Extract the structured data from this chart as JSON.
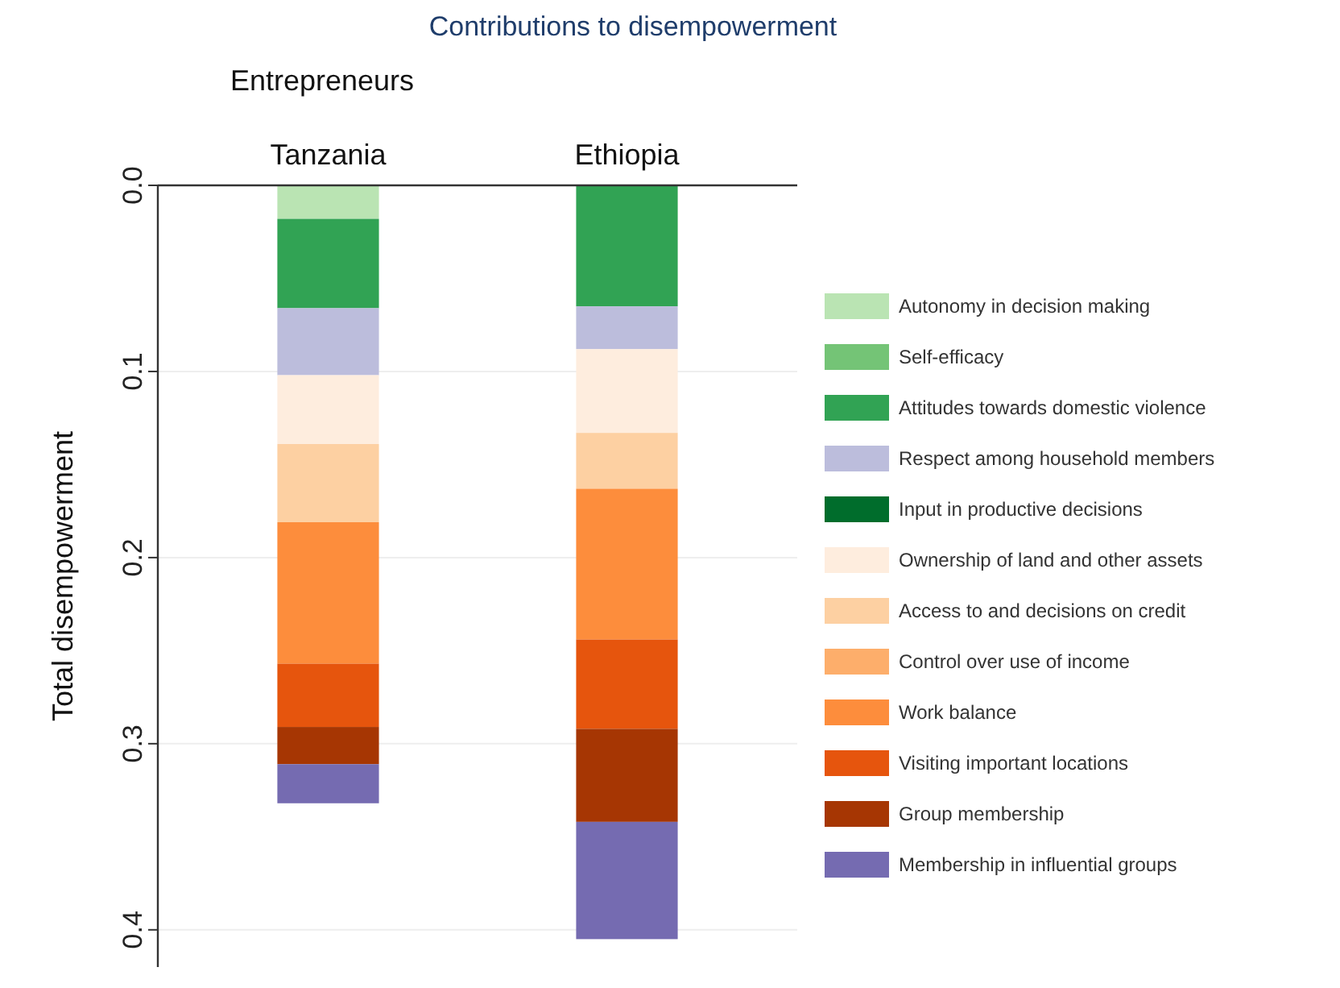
{
  "chart_data": {
    "type": "bar",
    "title": "Contributions to disempowerment",
    "subtitle": "Entrepreneurs",
    "ylabel": "Total disempowerment",
    "categories": [
      "Tanzania",
      "Ethiopia"
    ],
    "stacked": true,
    "ylim": [
      0.42,
      0
    ],
    "yticks": [
      {
        "value": 0,
        "label": "0.0"
      },
      0.1,
      0.2,
      0.3,
      0.4
    ],
    "grid": "y",
    "legend": "right",
    "series": [
      {
        "name": "Autonomy in decision making",
        "color": "#bae4b3",
        "values": [
          0.018,
          0
        ]
      },
      {
        "name": "Self-efficacy",
        "color": "#74c476",
        "values": [
          0,
          0
        ]
      },
      {
        "name": "Attitudes towards domestic violence",
        "color": "#31a354",
        "values": [
          0.048,
          0.065
        ]
      },
      {
        "name": "Respect among household members",
        "color": "#bcbddc",
        "values": [
          0.036,
          0.023
        ]
      },
      {
        "name": "Input in productive decisions",
        "color": "#006d2c",
        "values": [
          0,
          0
        ]
      },
      {
        "name": "Ownership of land and other assets",
        "color": "#feedde",
        "values": [
          0.037,
          0.045
        ]
      },
      {
        "name": "Access to and decisions on credit",
        "color": "#fdd0a2",
        "values": [
          0.042,
          0.03
        ]
      },
      {
        "name": "Control over use of income",
        "color": "#fdae6b",
        "values": [
          0,
          0
        ]
      },
      {
        "name": "Work balance",
        "color": "#fd8d3c",
        "values": [
          0.076,
          0.081
        ]
      },
      {
        "name": "Visiting important locations",
        "color": "#e6550d",
        "values": [
          0.034,
          0.048
        ]
      },
      {
        "name": "Group membership",
        "color": "#a63603",
        "values": [
          0.02,
          0.05
        ]
      },
      {
        "name": "Membership in influential groups",
        "color": "#756bb1",
        "values": [
          0.021,
          0.063
        ]
      }
    ]
  }
}
